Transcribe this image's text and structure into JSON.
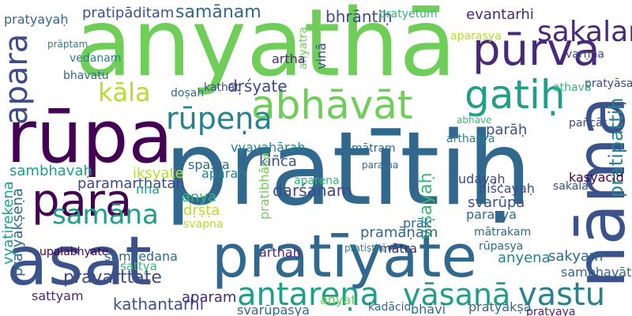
{
  "words": [
    "anyathā",
    "pratītiḥ",
    "rūpa",
    "asat",
    "pratīyate",
    "nāma",
    "pūrva",
    "gatiḥ",
    "abhāvāt",
    "para",
    "apara",
    "sakalam",
    "rūpeṇa",
    "antareṇa",
    "vāsanā",
    "vastu",
    "samāna",
    "kāla",
    "pratipattiḥ",
    "pratyayaḥ",
    "pratipāditam",
    "samānam",
    "bhrāntiḥ",
    "evantarhi",
    "aparasya",
    "pratyetum",
    "vyavahāraḥ",
    "dṛśyate",
    "kathat",
    "sambhavaḥ",
    "paramarthatah",
    "spaṣṭa",
    "aparaḥ",
    "kiñca",
    "aparena",
    "parāḥ",
    "darśanam",
    "sattya",
    "anya",
    "dṛṣṭa",
    "svapna",
    "pratibhāsa",
    "viṣayaḥ",
    "parasya",
    "niścayaḥ",
    "svarūpa",
    "udayaḥ",
    "pratyakṣeṇa",
    "upalabhyate",
    "saṃvedana",
    "pravarttate",
    "kathantarhi",
    "aparam",
    "svarūpasya",
    "bhāvi",
    "kadācid",
    "pratyakṣa",
    "pratyaya",
    "sambhavāt",
    "sakyam",
    "anyena",
    "rūpasya",
    "mātrakam",
    "mātra",
    "pramāṇam",
    "pañcāt",
    "pratyāsatti",
    "sakala",
    "arthaḥ",
    "vyatirekeṇa",
    "sattyam",
    "kasyacid",
    "varṇna",
    "athavā",
    "abhāve",
    "mātram",
    "parama",
    "arthasya",
    "anyat",
    "doṣah",
    "vedanam",
    "bhavatu",
    "iksyate",
    "anyatra",
    "vinā",
    "artha",
    "prāk",
    "pratiṣṭhā",
    "prāptam",
    "nna"
  ]
}
